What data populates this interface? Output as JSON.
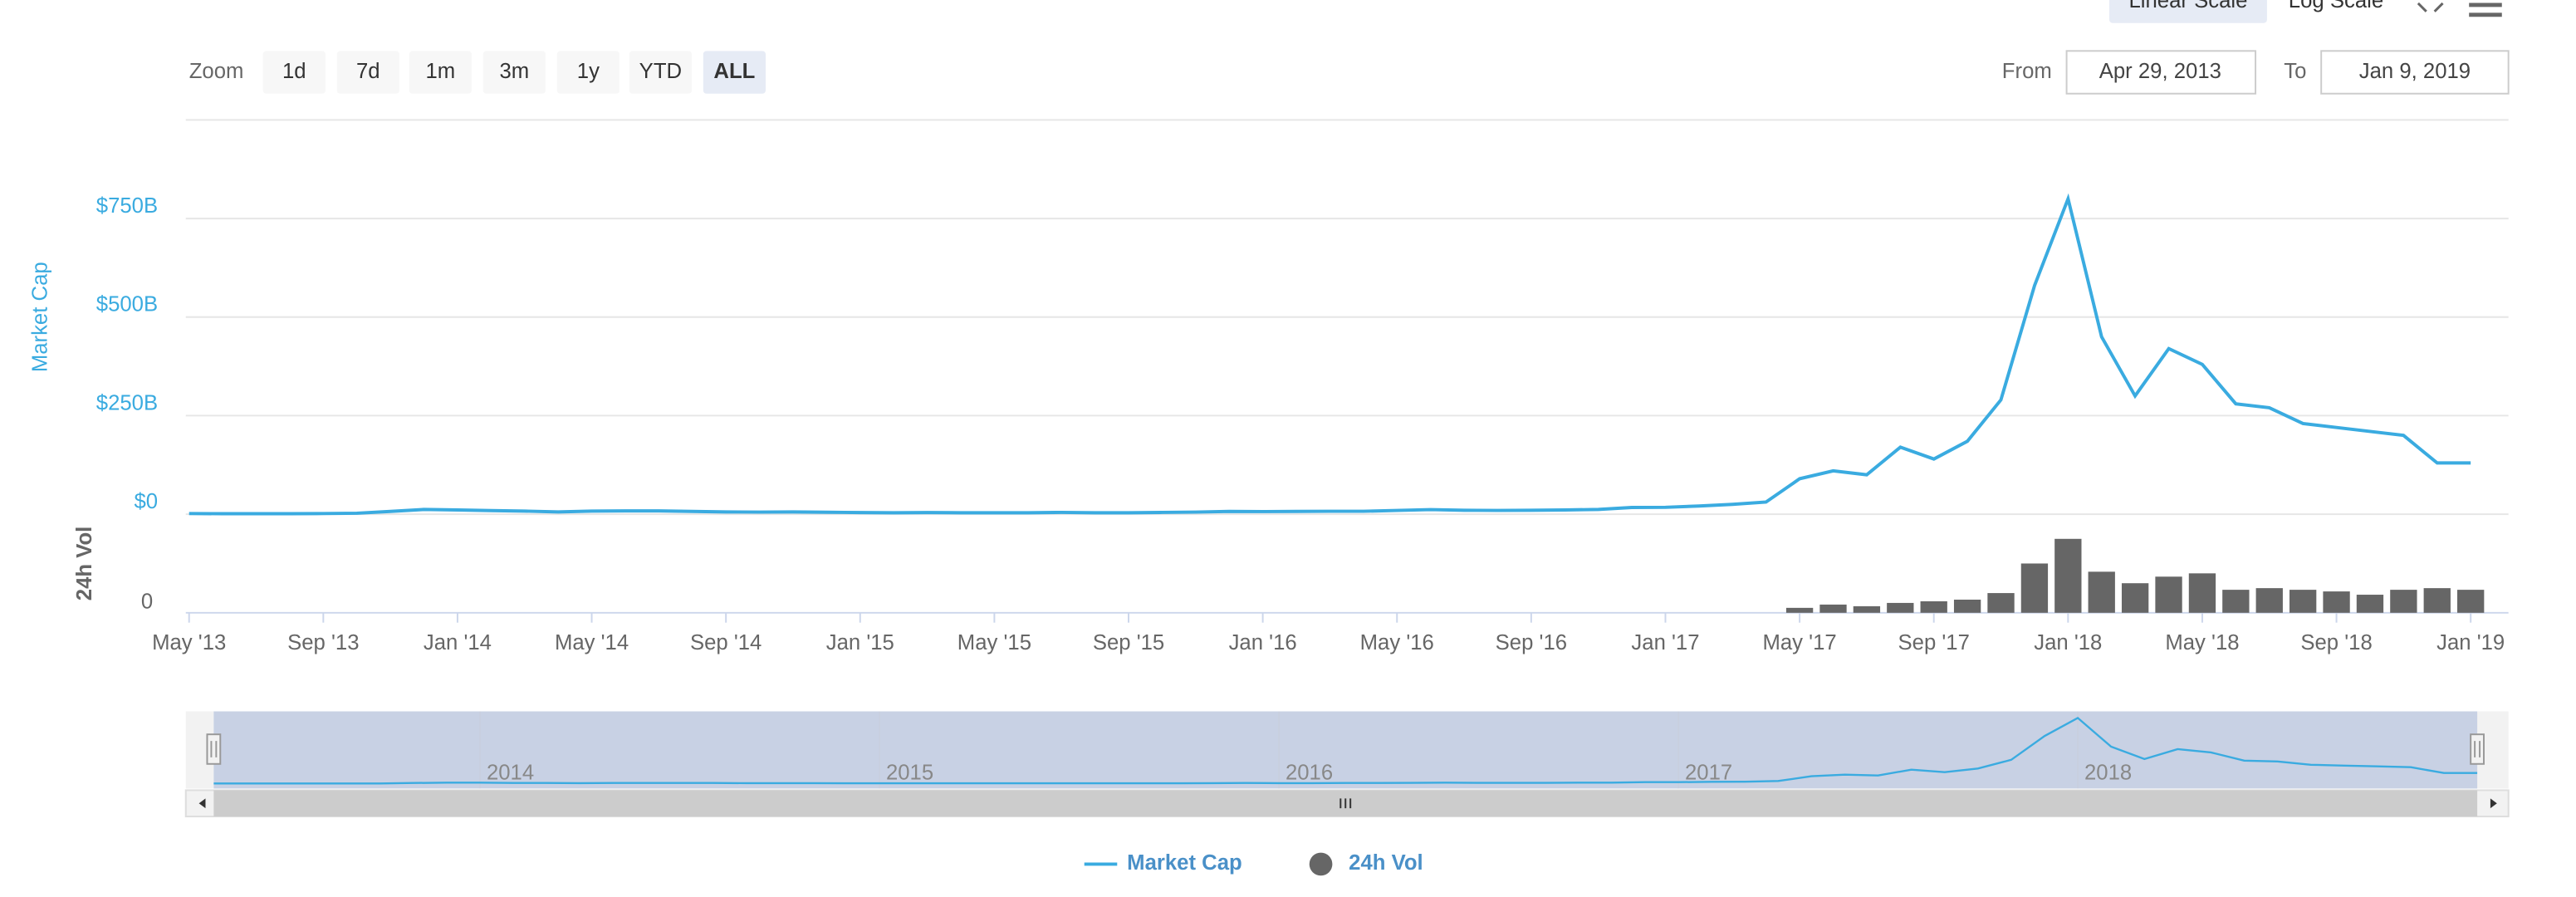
{
  "toolbar": {
    "zoom_label": "Zoom",
    "zoom_buttons": [
      "1d",
      "7d",
      "1m",
      "3m",
      "1y",
      "YTD",
      "ALL"
    ],
    "selected_zoom": 6,
    "from_label": "From",
    "from_value": "Apr 29, 2013",
    "to_label": "To",
    "to_value": "Jan 9, 2019",
    "scale_buttons": [
      "Linear Scale",
      "Log Scale"
    ],
    "selected_scale": 0
  },
  "chart_data": {
    "type": "line",
    "x": [
      "2013-05",
      "2013-06",
      "2013-07",
      "2013-08",
      "2013-09",
      "2013-10",
      "2013-11",
      "2013-12",
      "2014-01",
      "2014-02",
      "2014-03",
      "2014-04",
      "2014-05",
      "2014-06",
      "2014-07",
      "2014-08",
      "2014-09",
      "2014-10",
      "2014-11",
      "2014-12",
      "2015-01",
      "2015-02",
      "2015-03",
      "2015-04",
      "2015-05",
      "2015-06",
      "2015-07",
      "2015-08",
      "2015-09",
      "2015-10",
      "2015-11",
      "2015-12",
      "2016-01",
      "2016-02",
      "2016-03",
      "2016-04",
      "2016-05",
      "2016-06",
      "2016-07",
      "2016-08",
      "2016-09",
      "2016-10",
      "2016-11",
      "2016-12",
      "2017-01",
      "2017-02",
      "2017-03",
      "2017-04",
      "2017-05",
      "2017-06",
      "2017-07",
      "2017-08",
      "2017-09",
      "2017-10",
      "2017-11",
      "2017-12",
      "2018-01",
      "2018-02",
      "2018-03",
      "2018-04",
      "2018-05",
      "2018-06",
      "2018-07",
      "2018-08",
      "2018-09",
      "2018-10",
      "2018-11",
      "2018-12",
      "2019-01"
    ],
    "series": [
      {
        "name": "Market Cap",
        "color": "#3aabe0",
        "values": [
          1.5,
          1.3,
          1.1,
          1.3,
          1.6,
          2.3,
          7,
          12,
          11,
          9,
          8,
          6,
          8,
          8.5,
          8.5,
          7,
          6,
          5.5,
          5.8,
          4.9,
          4,
          3.9,
          4,
          3.6,
          3.6,
          3.7,
          4.6,
          3.8,
          3.8,
          4.4,
          5.6,
          7,
          6.8,
          6.9,
          7.7,
          7.4,
          9.5,
          11.5,
          10.2,
          9.5,
          10,
          11,
          12,
          17,
          17.7,
          21,
          25,
          31,
          90,
          110,
          100,
          170,
          140,
          185,
          290,
          580,
          800,
          450,
          300,
          420,
          380,
          280,
          270,
          230,
          220,
          210,
          200,
          130,
          130
        ]
      },
      {
        "name": "24h Vol",
        "color": "#666666",
        "axis": "y2",
        "values": [
          null,
          null,
          null,
          null,
          null,
          null,
          null,
          null,
          null,
          null,
          null,
          null,
          null,
          null,
          null,
          null,
          null,
          null,
          null,
          null,
          null,
          null,
          null,
          null,
          null,
          null,
          null,
          null,
          null,
          null,
          null,
          null,
          null,
          null,
          null,
          null,
          null,
          null,
          null,
          null,
          null,
          null,
          null,
          null,
          null,
          null,
          null,
          null,
          3,
          5,
          4,
          6,
          7,
          8,
          12,
          30,
          45,
          25,
          18,
          22,
          24,
          14,
          15,
          14,
          13,
          11,
          14,
          15,
          14
        ]
      }
    ],
    "y_label": "Market Cap",
    "y2_label": "24h Vol",
    "ylim": [
      0,
      1000
    ],
    "yticks": [
      {
        "value": 0,
        "label": "$0"
      },
      {
        "value": 250,
        "label": "$250B"
      },
      {
        "value": 500,
        "label": "$500B"
      },
      {
        "value": 750,
        "label": "$750B"
      }
    ],
    "y2lim": [
      0,
      55
    ],
    "y2ticks": [
      0
    ],
    "xticks": [
      {
        "value": "2013-05",
        "label": "May '13"
      },
      {
        "value": "2013-09",
        "label": "Sep '13"
      },
      {
        "value": "2014-01",
        "label": "Jan '14"
      },
      {
        "value": "2014-05",
        "label": "May '14"
      },
      {
        "value": "2014-09",
        "label": "Sep '14"
      },
      {
        "value": "2015-01",
        "label": "Jan '15"
      },
      {
        "value": "2015-05",
        "label": "May '15"
      },
      {
        "value": "2015-09",
        "label": "Sep '15"
      },
      {
        "value": "2016-01",
        "label": "Jan '16"
      },
      {
        "value": "2016-05",
        "label": "May '16"
      },
      {
        "value": "2016-09",
        "label": "Sep '16"
      },
      {
        "value": "2017-01",
        "label": "Jan '17"
      },
      {
        "value": "2017-05",
        "label": "May '17"
      },
      {
        "value": "2017-09",
        "label": "Sep '17"
      },
      {
        "value": "2018-01",
        "label": "Jan '18"
      },
      {
        "value": "2018-05",
        "label": "May '18"
      },
      {
        "value": "2018-09",
        "label": "Sep '18"
      },
      {
        "value": "2019-01",
        "label": "Jan '19"
      }
    ],
    "grid": true,
    "legend": "bottom",
    "navigator_ticks": [
      {
        "value": "2014-01",
        "label": "2014"
      },
      {
        "value": "2015-01",
        "label": "2015"
      },
      {
        "value": "2016-01",
        "label": "2016"
      },
      {
        "value": "2017-01",
        "label": "2017"
      },
      {
        "value": "2018-01",
        "label": "2018"
      }
    ]
  }
}
